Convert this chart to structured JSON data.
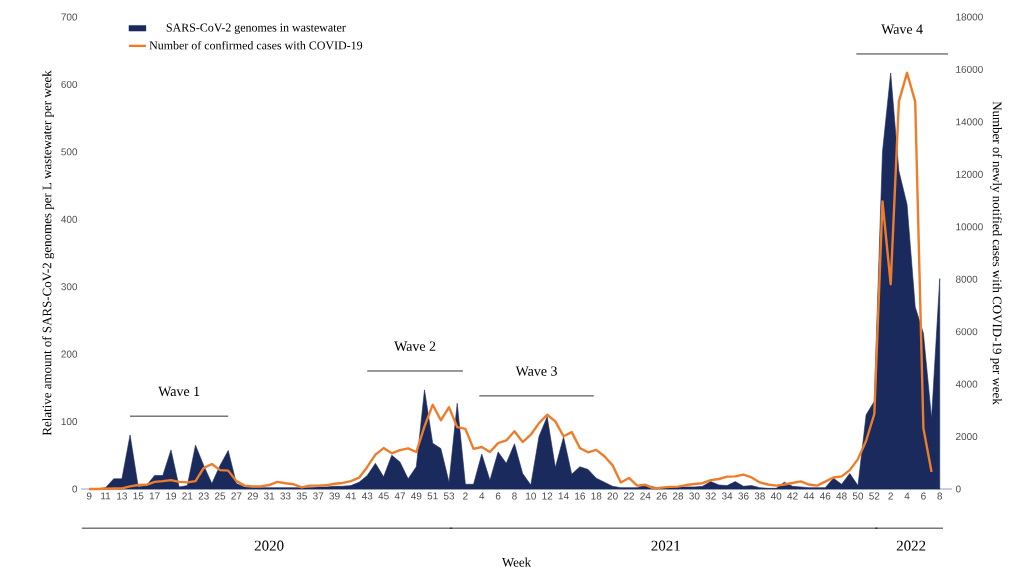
{
  "chart_data": {
    "type": "area",
    "xlabel": "Week",
    "ylabel": "Relative amount of SARS-CoV-2 genomes per L wastewater per week",
    "y2label": "Number of newly notified cases with COVID-19 per week",
    "categories": [
      "9",
      null,
      "11",
      null,
      "13",
      null,
      "15",
      null,
      "17",
      null,
      "19",
      null,
      "21",
      null,
      "23",
      null,
      "25",
      null,
      "27",
      null,
      "29",
      null,
      "31",
      null,
      "33",
      null,
      "35",
      null,
      "37",
      null,
      "39",
      null,
      "41",
      null,
      "43",
      null,
      "45",
      null,
      "47",
      null,
      "49",
      null,
      "51",
      null,
      "53",
      null,
      "2",
      null,
      "4",
      null,
      "6",
      null,
      "8",
      null,
      "10",
      null,
      "12",
      null,
      "14",
      null,
      "16",
      null,
      "18",
      null,
      "20",
      null,
      "22",
      null,
      "24",
      null,
      "26",
      null,
      "28",
      null,
      "30",
      null,
      "32",
      null,
      "34",
      null,
      "36",
      null,
      "38",
      null,
      "40",
      null,
      "42",
      null,
      "44",
      null,
      "46",
      null,
      "48",
      null,
      "50",
      null,
      "52",
      null,
      "2",
      null,
      "4",
      null,
      "6",
      null,
      "8"
    ],
    "series": [
      {
        "name": "SARS-CoV-2 genomes in wastewater",
        "color": "#1b2a5c",
        "values": [
          0,
          0,
          2,
          15,
          15,
          80,
          3,
          5,
          20,
          20,
          58,
          3,
          5,
          65,
          35,
          8,
          35,
          57,
          8,
          3,
          2,
          2,
          2,
          2,
          2,
          2,
          2,
          2,
          3,
          3,
          4,
          4,
          5,
          10,
          20,
          38,
          18,
          50,
          40,
          15,
          33,
          147,
          68,
          60,
          10,
          127,
          7,
          7,
          52,
          13,
          55,
          38,
          67,
          23,
          6,
          78,
          107,
          32,
          77,
          22,
          33,
          29,
          16,
          10,
          4,
          2,
          2,
          2,
          6,
          3,
          1,
          2,
          3,
          3,
          3,
          4,
          11,
          6,
          5,
          11,
          4,
          5,
          2,
          1,
          1,
          10,
          4,
          3,
          2,
          2,
          2,
          16,
          7,
          23,
          5,
          110,
          130,
          500,
          617,
          472,
          422,
          270,
          231,
          105,
          312
        ]
      },
      {
        "name": "Number of confirmed cases with COVID-19",
        "type": "line",
        "axis": "y2",
        "color": "#ee7d2b",
        "values": [
          0,
          0,
          10,
          20,
          20,
          100,
          150,
          160,
          270,
          300,
          340,
          270,
          250,
          300,
          800,
          950,
          720,
          700,
          300,
          130,
          100,
          100,
          150,
          270,
          220,
          180,
          60,
          130,
          130,
          140,
          200,
          230,
          300,
          430,
          840,
          1310,
          1560,
          1360,
          1480,
          1550,
          1410,
          2390,
          3210,
          2620,
          3120,
          2360,
          2290,
          1530,
          1600,
          1410,
          1750,
          1850,
          2200,
          1790,
          2070,
          2510,
          2830,
          2580,
          2010,
          2170,
          1560,
          1400,
          1490,
          1250,
          900,
          250,
          420,
          130,
          160,
          20,
          50,
          80,
          90,
          150,
          190,
          220,
          340,
          380,
          470,
          480,
          550,
          440,
          250,
          170,
          130,
          170,
          230,
          290,
          170,
          130,
          280,
          440,
          480,
          720,
          1140,
          1840,
          2860,
          10970,
          7810,
          14770,
          15870,
          14770,
          2320,
          650,
          null
        ]
      }
    ],
    "ylim": [
      0,
      700
    ],
    "yticks": [
      0,
      100,
      200,
      300,
      400,
      500,
      600,
      700
    ],
    "y2lim": [
      0,
      18000
    ],
    "y2ticks": [
      0,
      2000,
      4000,
      6000,
      8000,
      10000,
      12000,
      14000,
      16000,
      18000
    ],
    "legend": "top left",
    "annotations": [
      "Wave 1",
      "Wave 2",
      "Wave 3",
      "Wave 4",
      "2020",
      "2021",
      "2022"
    ]
  }
}
